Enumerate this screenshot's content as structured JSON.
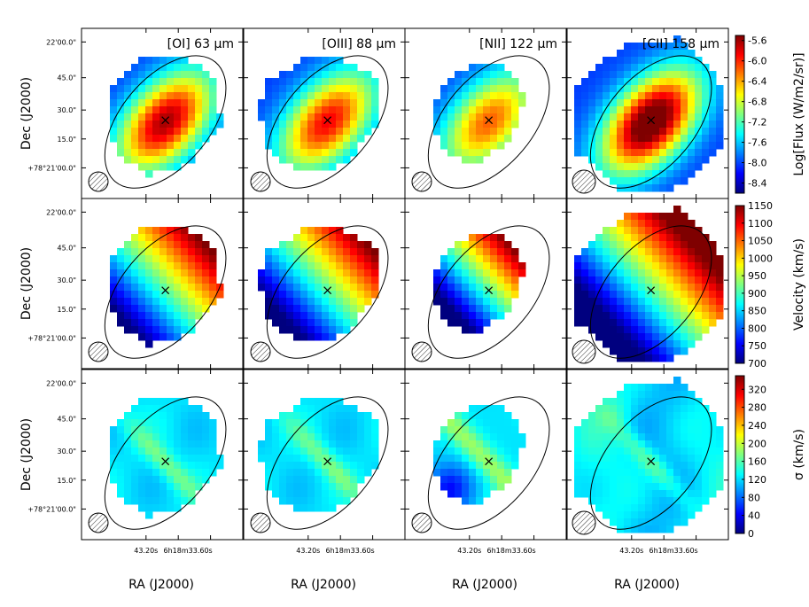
{
  "figure": {
    "type": "multi-panel spectral line maps with colorbars",
    "x_tick_labels": [
      "43.20s",
      "6h18m33.60s"
    ],
    "y_tick_labels": [
      "22'00.0\"",
      "45.0\"",
      "30.0\"",
      "15.0\"",
      "+78°21'00.0\""
    ],
    "xlabel": "RA (J2000)",
    "ylabel": "Dec (J2000)"
  },
  "chart_data": {
    "type": "heatmap",
    "panel_titles": [
      "[OI] 63 μm",
      "[OIII] 88 μm",
      "[NII] 122 μm",
      "[CII] 158 μm"
    ],
    "rows": [
      {
        "quantity": "flux",
        "colorbar_label": "Log[Flux (W/m2/sr)]",
        "ticks": [
          "-5.6",
          "-6.0",
          "-6.4",
          "-6.8",
          "-7.2",
          "-7.6",
          "-8.0",
          "-8.4"
        ],
        "range": [
          -8.6,
          -5.5
        ]
      },
      {
        "quantity": "velocity",
        "colorbar_label": "Velocity (km/s)",
        "ticks": [
          "1150",
          "1100",
          "1050",
          "1000",
          "950",
          "900",
          "850",
          "800",
          "750",
          "700"
        ],
        "range": [
          700,
          1150
        ]
      },
      {
        "quantity": "sigma",
        "colorbar_label": "σ (km/s)",
        "ticks": [
          "320",
          "280",
          "240",
          "200",
          "160",
          "120",
          "80",
          "40",
          "0"
        ],
        "range": [
          0,
          350
        ]
      }
    ],
    "colormap": "jet",
    "colormap_stops": [
      "#00007f",
      "#0000ff",
      "#007fff",
      "#00ffff",
      "#7fff7f",
      "#ffff00",
      "#ff7f00",
      "#ff0000",
      "#7f0000"
    ],
    "overlays": [
      "galaxy ellipse",
      "center cross",
      "hatched beam circle"
    ]
  }
}
